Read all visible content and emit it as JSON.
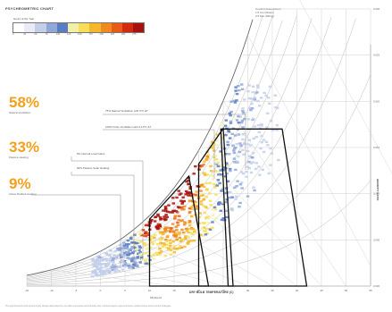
{
  "header": {
    "title": "PSYCHROMETRIC CHART",
    "legend_title": "Hours of the Year",
    "legend_ticks": [
      "0",
      "25",
      "50",
      "75",
      "100",
      "125",
      "150",
      "175",
      "200",
      "225",
      "250",
      "275"
    ],
    "legend_colors": [
      "#ffffff",
      "#e9ecf7",
      "#c3cfe9",
      "#8fa8d8",
      "#5a7cc3",
      "#f2f0a6",
      "#f6de57",
      "#f5b82b",
      "#ef8a1e",
      "#e75a17",
      "#d32a12",
      "#a8120d"
    ]
  },
  "assumptions": [
    "Comfort Assumptions:",
    "1.5 Clo (Winter)",
    "0.5 Met (Sitting)"
  ],
  "stats": [
    {
      "pct": "58%",
      "desc": "Natural Ventilation"
    },
    {
      "pct": "33%",
      "desc": "Passive Heating"
    },
    {
      "pct": "9%",
      "desc": "Active Radiant Heating"
    }
  ],
  "callouts": [
    "75% Natural Ventilation with 0°C ΔT",
    "100% Finite Ventilation with 0.10°C ΔT",
    "9% Internal Load Gains",
    "99% Passive Solar Heating"
  ],
  "axes": {
    "x_title": "DRY BULB TEMPERATURE (C)",
    "y_title": "HUMIDITY RATIO",
    "x_sub": "DB (Bus-D)"
  },
  "chart_data": {
    "type": "heatmap",
    "title": "PSYCHROMETRIC CHART",
    "xlabel": "DRY BULB TEMPERATURE (C)",
    "ylabel": "HUMIDITY RATIO",
    "x_ticks": [
      "-15",
      "-10",
      "-5",
      "0",
      "5",
      "10",
      "15",
      "20",
      "25",
      "30",
      "35",
      "40",
      "45",
      "50",
      "55"
    ],
    "y_ticks": [
      "0.000",
      "0.005",
      "0.010",
      "0.015",
      "0.020",
      "0.025",
      "0.030"
    ],
    "xlim": [
      -15,
      55
    ],
    "ylim": [
      0,
      0.03
    ],
    "legend": "top-left",
    "zones": [
      {
        "name": "Natural Ventilation",
        "pct": 58
      },
      {
        "name": "Passive Heating",
        "pct": 33
      },
      {
        "name": "Active Radiant Heating",
        "pct": 9
      }
    ]
  },
  "footnote": "The psychrometric chart shows hourly climate data plotted by dry bulb temperature and humidity ratio. Colored regions represent hours; outlined zones show comfort strategies."
}
